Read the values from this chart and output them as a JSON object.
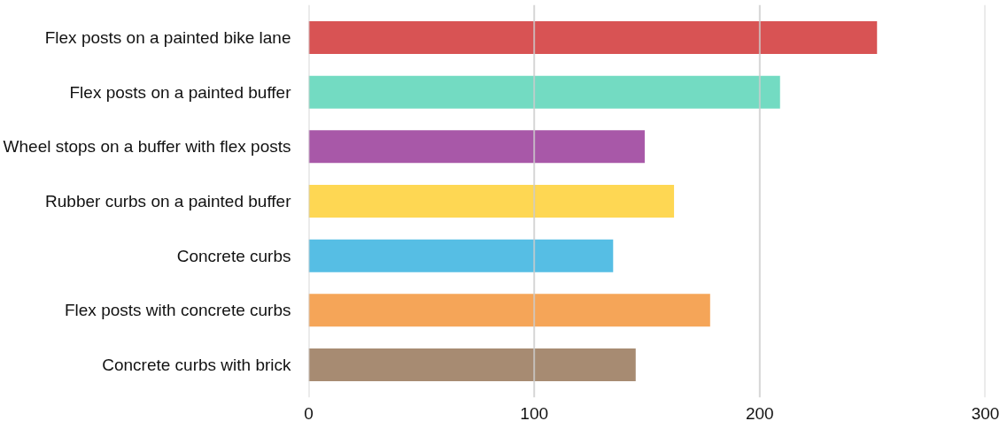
{
  "chart_data": {
    "type": "bar",
    "orientation": "horizontal",
    "categories": [
      "Flex posts on a painted bike lane",
      "Flex posts on a painted buffer",
      "Wheel stops on a buffer with flex posts",
      "Rubber curbs on a painted buffer",
      "Concrete curbs",
      "Flex posts with concrete curbs",
      "Concrete curbs with brick"
    ],
    "values": [
      252,
      209,
      149,
      162,
      135,
      178,
      145
    ],
    "colors": [
      "#d64a4b",
      "#6bd9bf",
      "#a34fa3",
      "#fed54a",
      "#4dbbe3",
      "#f4a04f",
      "#a2856a"
    ],
    "xlim": [
      0,
      300
    ],
    "xticks": [
      0,
      100,
      200,
      300
    ],
    "grid": "x"
  }
}
